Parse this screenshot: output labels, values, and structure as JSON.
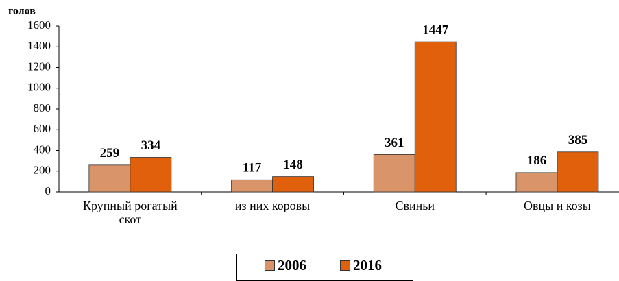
{
  "chart_data": {
    "type": "bar",
    "y_label": "голов",
    "categories": [
      "Крупный рогатый скот",
      "из них коровы",
      "Свиньи",
      "Овцы и козы"
    ],
    "series": [
      {
        "name": "2006",
        "color": "#d9946a",
        "values": [
          259,
          117,
          361,
          186
        ]
      },
      {
        "name": "2016",
        "color": "#e0600c",
        "values": [
          334,
          148,
          1447,
          385
        ]
      }
    ],
    "ylim": [
      0,
      1600
    ],
    "yticks": [
      0,
      200,
      400,
      600,
      800,
      1000,
      1200,
      1400,
      1600
    ],
    "legend": "bottom"
  }
}
